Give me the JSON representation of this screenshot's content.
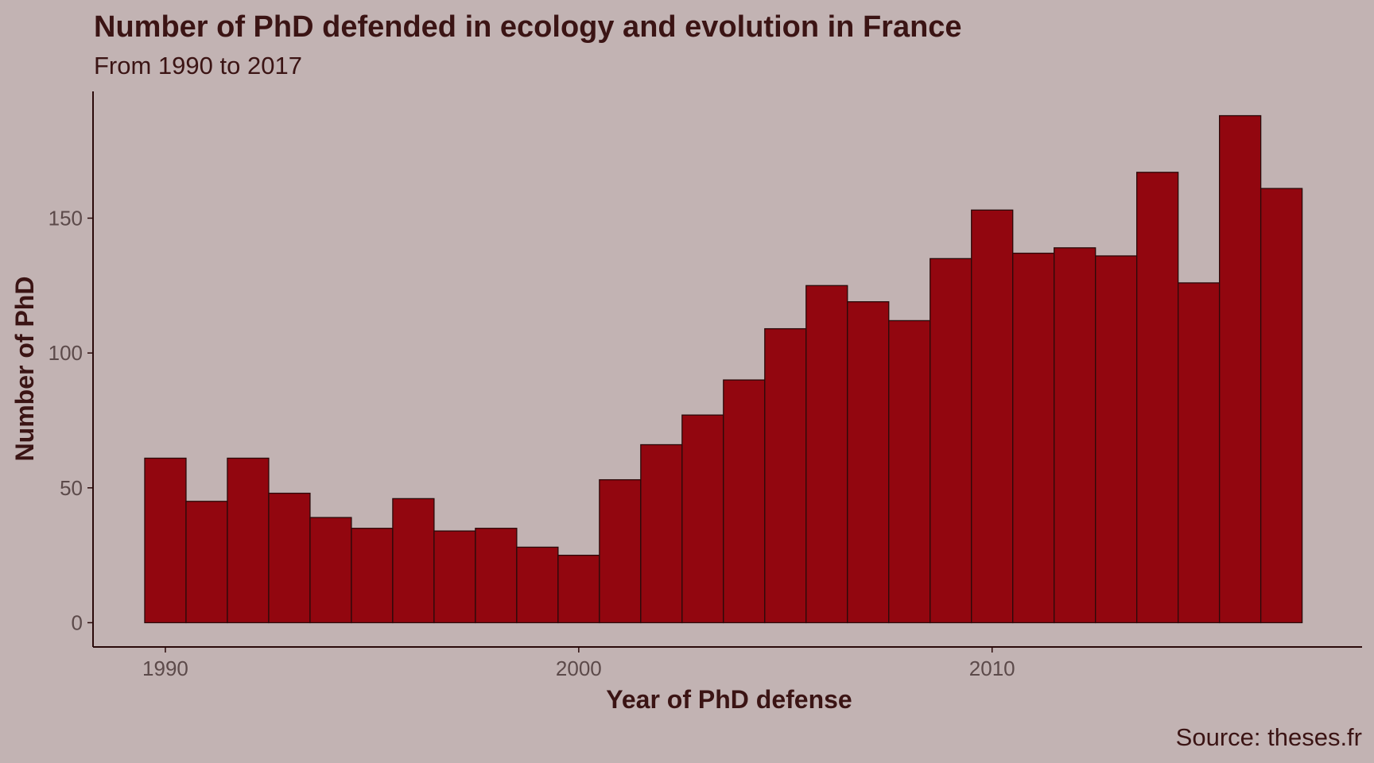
{
  "colors": {
    "background": "#c2b3b3",
    "bar_fill": "#92060f",
    "bar_stroke": "#2a0a0a",
    "text_dark": "#3b1414",
    "tick_text": "#5c4a4a"
  },
  "chart_data": {
    "type": "bar",
    "title": "Number of PhD defended in ecology and evolution in France",
    "subtitle": "From 1990 to 2017",
    "xlabel": "Year of PhD defense",
    "ylabel": "Number of PhD",
    "caption": "Source: theses.fr",
    "categories": [
      1990,
      1991,
      1992,
      1993,
      1994,
      1995,
      1996,
      1997,
      1998,
      1999,
      2000,
      2001,
      2002,
      2003,
      2004,
      2005,
      2006,
      2007,
      2008,
      2009,
      2010,
      2011,
      2012,
      2013,
      2014,
      2015,
      2016,
      2017
    ],
    "values": [
      61,
      45,
      61,
      48,
      39,
      35,
      46,
      34,
      35,
      28,
      25,
      53,
      66,
      77,
      90,
      109,
      125,
      119,
      112,
      135,
      153,
      137,
      139,
      136,
      167,
      126,
      188,
      161
    ],
    "xticks": [
      1990,
      2000,
      2010
    ],
    "xtick_labels": [
      "1990",
      "2000",
      "2010"
    ],
    "yticks": [
      0,
      50,
      100,
      150
    ],
    "ytick_labels": [
      "0",
      "50",
      "100",
      "150"
    ],
    "xlim": [
      1988.25,
      2018.95
    ],
    "ylim": [
      -9,
      197
    ],
    "grid": false,
    "legend": "none"
  }
}
